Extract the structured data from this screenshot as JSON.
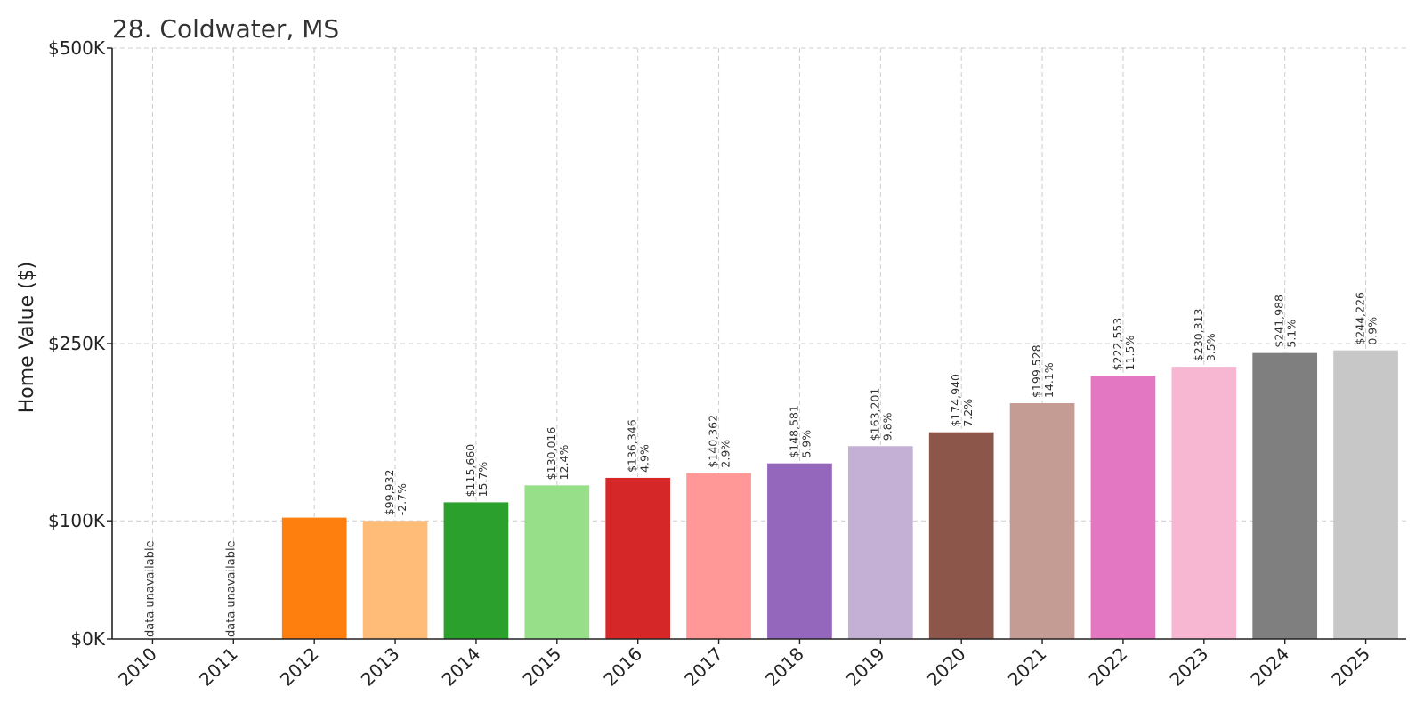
{
  "chart_data": {
    "type": "bar",
    "title": "28. Coldwater, MS",
    "xlabel": "",
    "ylabel": "Home Value ($)",
    "ylim": [
      0,
      500000
    ],
    "yticks": [
      {
        "value": 0,
        "label": "$0K"
      },
      {
        "value": 100000,
        "label": "$100K"
      },
      {
        "value": 250000,
        "label": "$250K"
      },
      {
        "value": 500000,
        "label": "$500K"
      }
    ],
    "grid": true,
    "unavailable_text": "data unavailable",
    "bars": [
      {
        "year": "2010",
        "value": null,
        "color": "#1f77b4",
        "value_label": "",
        "pct_label": ""
      },
      {
        "year": "2011",
        "value": null,
        "color": "#aec7e8",
        "value_label": "",
        "pct_label": ""
      },
      {
        "year": "2012",
        "value": 102700,
        "color": "#ff7f0e",
        "value_label": "",
        "pct_label": ""
      },
      {
        "year": "2013",
        "value": 99932,
        "color": "#ffbb78",
        "value_label": "$99,932",
        "pct_label": "-2.7%"
      },
      {
        "year": "2014",
        "value": 115660,
        "color": "#2ca02c",
        "value_label": "$115,660",
        "pct_label": "15.7%"
      },
      {
        "year": "2015",
        "value": 130016,
        "color": "#98df8a",
        "value_label": "$130,016",
        "pct_label": "12.4%"
      },
      {
        "year": "2016",
        "value": 136346,
        "color": "#d62728",
        "value_label": "$136,346",
        "pct_label": "4.9%"
      },
      {
        "year": "2017",
        "value": 140362,
        "color": "#ff9896",
        "value_label": "$140,362",
        "pct_label": "2.9%"
      },
      {
        "year": "2018",
        "value": 148581,
        "color": "#9467bd",
        "value_label": "$148,581",
        "pct_label": "5.9%"
      },
      {
        "year": "2019",
        "value": 163201,
        "color": "#c5b0d5",
        "value_label": "$163,201",
        "pct_label": "9.8%"
      },
      {
        "year": "2020",
        "value": 174940,
        "color": "#8c564b",
        "value_label": "$174,940",
        "pct_label": "7.2%"
      },
      {
        "year": "2021",
        "value": 199528,
        "color": "#c49c94",
        "value_label": "$199,528",
        "pct_label": "14.1%"
      },
      {
        "year": "2022",
        "value": 222553,
        "color": "#e377c2",
        "value_label": "$222,553",
        "pct_label": "11.5%"
      },
      {
        "year": "2023",
        "value": 230313,
        "color": "#f7b6d2",
        "value_label": "$230,313",
        "pct_label": "3.5%"
      },
      {
        "year": "2024",
        "value": 241988,
        "color": "#7f7f7f",
        "value_label": "$241,988",
        "pct_label": "5.1%"
      },
      {
        "year": "2025",
        "value": 244226,
        "color": "#c7c7c7",
        "value_label": "$244,226",
        "pct_label": "0.9%"
      }
    ]
  }
}
